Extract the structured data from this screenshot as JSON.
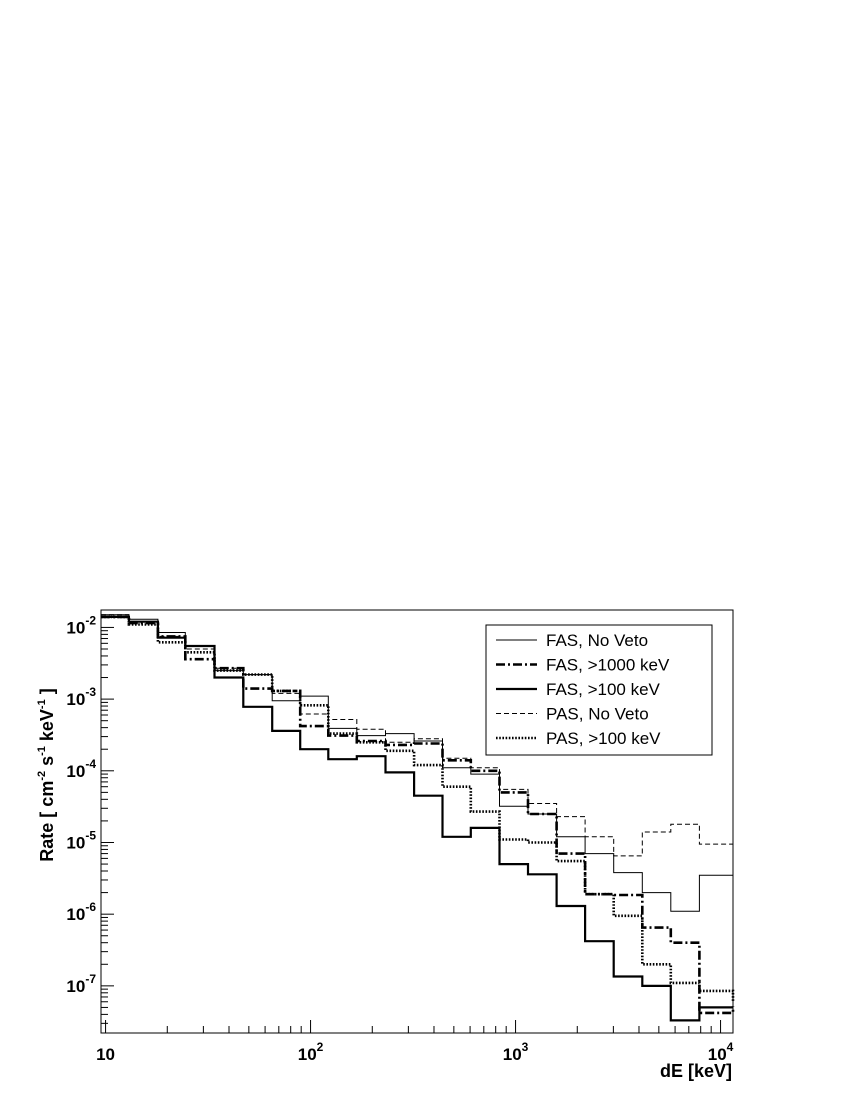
{
  "chart_data": {
    "type": "step-histogram",
    "title": "",
    "xlabel": "dE [keV]",
    "ylabel": "Rate [ cm^-2 s^-1 keV^-1 ]",
    "ylabel_parts": {
      "a": "Rate [ cm",
      "b": "-2",
      "c": " s",
      "d": "-1",
      "e": " keV",
      "f": "-1",
      "g": " ]"
    },
    "x_scale": "log",
    "y_scale": "log",
    "xlim": [
      9.5,
      11500
    ],
    "ylim": [
      2.2e-08,
      0.0175
    ],
    "x_ticks": [
      {
        "value": 10,
        "base": "10",
        "exp": ""
      },
      {
        "value": 100,
        "base": "10",
        "exp": "2"
      },
      {
        "value": 1000,
        "base": "10",
        "exp": "3"
      },
      {
        "value": 10000,
        "base": "10",
        "exp": "4"
      }
    ],
    "y_ticks": [
      {
        "value": 1e-07,
        "base": "10",
        "exp": "-7"
      },
      {
        "value": 1e-06,
        "base": "10",
        "exp": "-6"
      },
      {
        "value": 1e-05,
        "base": "10",
        "exp": "-5"
      },
      {
        "value": 0.0001,
        "base": "10",
        "exp": "-4"
      },
      {
        "value": 0.001,
        "base": "10",
        "exp": "-3"
      },
      {
        "value": 0.01,
        "base": "10",
        "exp": "-2"
      }
    ],
    "bin_edges": [
      9.5,
      13,
      18,
      24.5,
      34,
      47,
      65,
      89,
      122,
      168,
      232,
      320,
      440,
      605,
      835,
      1150,
      1585,
      2185,
      3010,
      4150,
      5720,
      7885,
      11500
    ],
    "grid": false,
    "legend_position": "top-right",
    "series": [
      {
        "name": "FAS, No Veto",
        "style": "thin-solid",
        "values": [
          0.015,
          0.013,
          0.0085,
          0.0055,
          0.0025,
          0.0022,
          0.00095,
          0.0011,
          0.00039,
          0.00031,
          0.00033,
          0.00026,
          0.00011,
          9e-05,
          3.2e-05,
          2.5e-05,
          1.2e-05,
          7e-06,
          3.8e-06,
          2e-06,
          1.1e-06,
          3.5e-06,
          7.3e-06
        ]
      },
      {
        "name": "FAS, >1000 keV",
        "style": "dash-dot",
        "values": [
          0.014,
          0.0115,
          0.0075,
          0.0036,
          0.0027,
          0.0014,
          0.0013,
          0.00042,
          0.00031,
          0.00026,
          0.00023,
          0.00024,
          0.00014,
          0.0001,
          5e-05,
          2.5e-05,
          7e-06,
          1.9e-06,
          1.85e-06,
          6.5e-07,
          4e-07,
          4.2e-08,
          5.2e-08
        ]
      },
      {
        "name": "FAS, >100 keV",
        "style": "thick-solid",
        "values": [
          0.014,
          0.012,
          0.0072,
          0.0055,
          0.002,
          0.00078,
          0.00036,
          0.0002,
          0.000145,
          0.00016,
          9.5e-05,
          4.5e-05,
          1.2e-05,
          1.6e-05,
          5e-06,
          3.6e-06,
          1.3e-06,
          4.2e-07,
          1.35e-07,
          1e-07,
          3.3e-08,
          5e-08,
          5e-08
        ]
      },
      {
        "name": "PAS, No Veto",
        "style": "dashed",
        "values": [
          0.015,
          0.012,
          0.0075,
          0.005,
          0.0027,
          0.0022,
          0.0012,
          0.00062,
          0.00052,
          0.00038,
          0.00025,
          0.00028,
          0.00015,
          0.00011,
          5.5e-05,
          3.5e-05,
          2.3e-05,
          1.2e-05,
          6.5e-06,
          1.4e-05,
          1.8e-05,
          9.5e-06,
          6e-06
        ]
      },
      {
        "name": "PAS, >100 keV",
        "style": "dotted",
        "values": [
          0.014,
          0.011,
          0.0062,
          0.0045,
          0.0025,
          0.0022,
          0.0013,
          0.00082,
          0.00033,
          0.00025,
          0.00019,
          0.00012,
          6e-05,
          2.7e-05,
          1.1e-05,
          1e-05,
          5.5e-06,
          1.9e-06,
          9.5e-07,
          2e-07,
          1.1e-07,
          8.5e-08,
          6e-08
        ]
      }
    ]
  },
  "colors": {
    "line": "#000000",
    "background": "#ffffff"
  }
}
